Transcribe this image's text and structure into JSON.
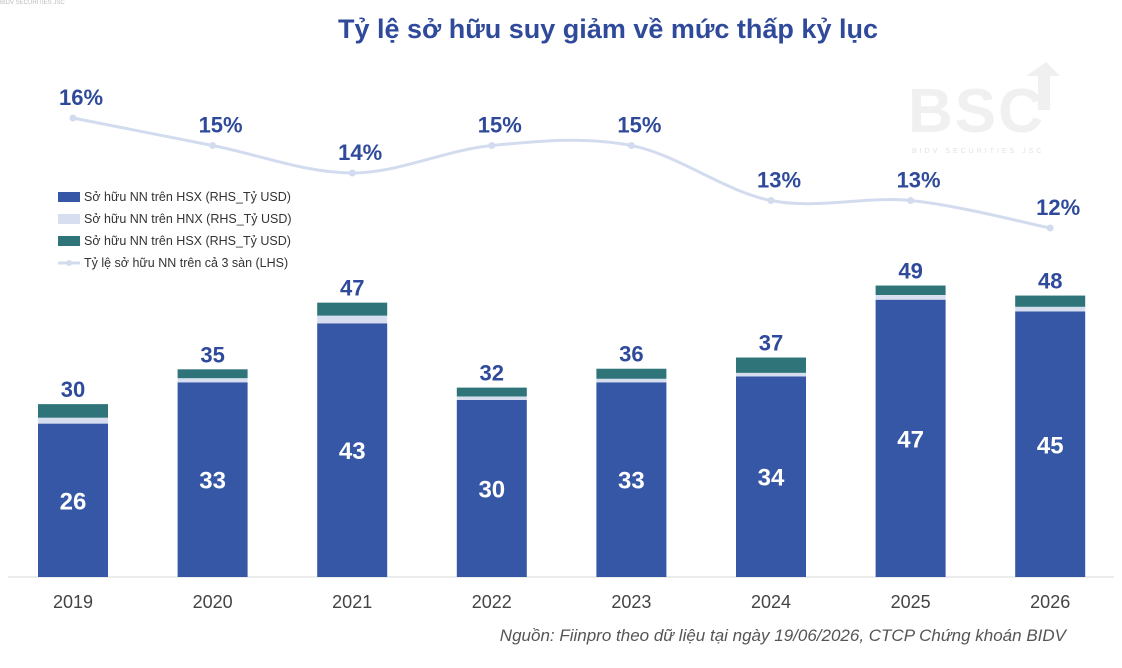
{
  "header_note": "BIDV SECURITIES JSC",
  "title": "Tỷ lệ sở hữu suy giảm về mức thấp kỷ lục",
  "watermark": {
    "brand": "BSC",
    "tagline": "BIDV SECURITIES JSC"
  },
  "source_note": "Nguồn: Fiinpro theo dữ liệu tại ngày 19/06/2026, CTCP Chứng khoán BIDV",
  "colors": {
    "hsx": "#3557A5",
    "hnx": "#D6DEF0",
    "upcom": "#2E7478",
    "line": "#D3DCEF",
    "label": "#2F4A9A"
  },
  "chart_data": {
    "type": "bar",
    "stacked": true,
    "categories": [
      "2019",
      "2020",
      "2021",
      "2022",
      "2023",
      "2024",
      "2025",
      "2026"
    ],
    "series": [
      {
        "name": "Sở hữu NN trên HSX (RHS_Tỷ USD)",
        "values": [
          26,
          33,
          43,
          30,
          33,
          34,
          47,
          45
        ],
        "color": "#3557A5"
      },
      {
        "name": "Sở hữu NN trên HNX (RHS_Tỷ USD)",
        "values": [
          1.0,
          0.7,
          1.3,
          0.6,
          0.6,
          0.6,
          0.8,
          0.8
        ],
        "color": "#D6DEF0"
      },
      {
        "name": "Sở hữu NN trên HSX (RHS_Tỷ USD)",
        "values": [
          2.3,
          1.5,
          2.2,
          1.5,
          1.7,
          2.6,
          1.6,
          1.9
        ],
        "color": "#2E7478"
      }
    ],
    "totals": [
      30,
      35,
      47,
      32,
      36,
      37,
      49,
      48
    ],
    "line": {
      "name": "Tỷ lệ sở hữu NN trên cả 3 sàn (LHS)",
      "values": [
        16,
        15,
        14,
        15,
        15,
        13,
        13,
        12
      ],
      "labels": [
        "16%",
        "15%",
        "14%",
        "15%",
        "15%",
        "13%",
        "13%",
        "12%"
      ],
      "color": "#D3DCEF"
    },
    "ylim_bars": [
      0,
      49
    ],
    "legend_position": "left",
    "grid": false
  }
}
